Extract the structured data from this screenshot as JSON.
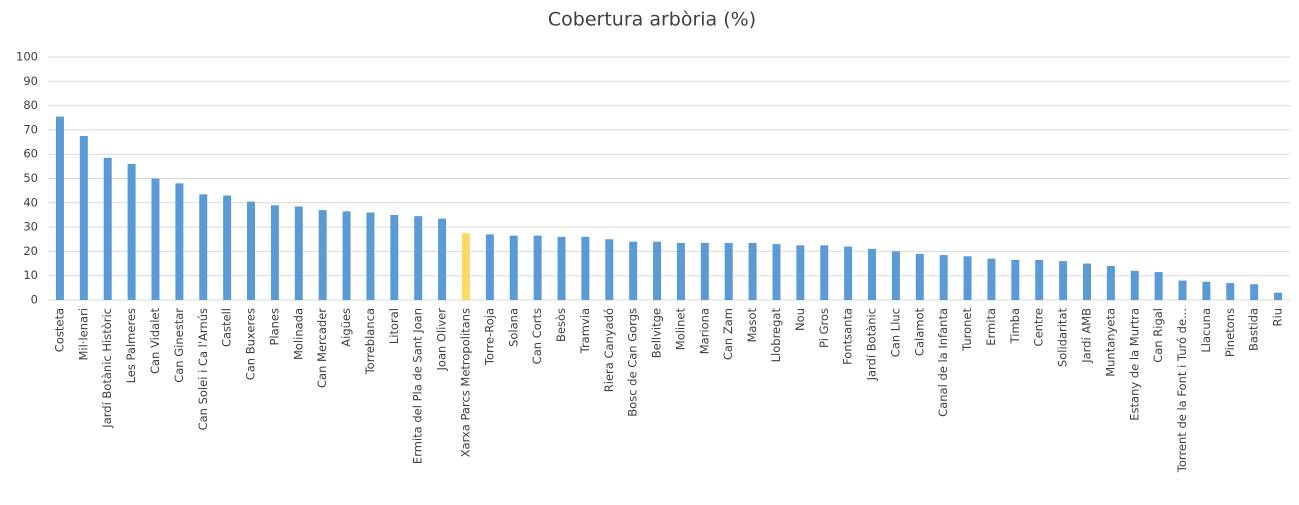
{
  "chart_data": {
    "type": "bar",
    "title": "Cobertura arbòria (%)",
    "categories": [
      "Costeta",
      "Mil·lenari",
      "Jardí Botànic Històric",
      "Les Palmeres",
      "Can Vidalet",
      "Can Ginestar",
      "Can Solei i Ca l'Arnús",
      "Castell",
      "Can Buxeres",
      "Planes",
      "Molinada",
      "Can Mercader",
      "Aigües",
      "Torreblanca",
      "Litoral",
      "Ermita del Pla de Sant Joan",
      "Joan Oliver",
      "Xarxa Parcs Metropolitans",
      "Torre-Roja",
      "Solana",
      "Can Corts",
      "Besòs",
      "Tramvia",
      "Riera Canyadó",
      "Bosc de Can Gorgs",
      "Bellvitge",
      "Molinet",
      "Mariona",
      "Can Zam",
      "Masot",
      "Llobregat",
      "Nou",
      "Pi Gros",
      "Fontsanta",
      "Jardí Botànic",
      "Can Lluc",
      "Calamot",
      "Canal de la Infanta",
      "Turonet",
      "Ermita",
      "Timba",
      "Centre",
      "Solidaritat",
      "Jardí AMB",
      "Muntanyeta",
      "Estany de la Murtra",
      "Can Rigal",
      "Torrent de la Font i Turó de...",
      "Llacuna",
      "Pinetons",
      "Bastida",
      "Riu"
    ],
    "values": [
      75.5,
      67.5,
      58.5,
      56,
      50,
      48,
      43.5,
      43,
      40.5,
      39,
      38.5,
      37,
      36.5,
      36,
      35,
      34.5,
      33.5,
      27.5,
      27,
      26.5,
      26.5,
      26,
      26,
      25,
      24,
      24,
      23.5,
      23.5,
      23.5,
      23.5,
      23,
      22.5,
      22.5,
      22,
      21,
      20,
      19,
      18.5,
      18,
      17,
      16.5,
      16.5,
      16,
      15,
      14,
      12,
      11.5,
      8,
      7.5,
      7,
      6.5,
      3
    ],
    "colors": [
      "#5b9bd5",
      "#5b9bd5",
      "#5b9bd5",
      "#5b9bd5",
      "#5b9bd5",
      "#5b9bd5",
      "#5b9bd5",
      "#5b9bd5",
      "#5b9bd5",
      "#5b9bd5",
      "#5b9bd5",
      "#5b9bd5",
      "#5b9bd5",
      "#5b9bd5",
      "#5b9bd5",
      "#5b9bd5",
      "#5b9bd5",
      "#ffd966",
      "#5b9bd5",
      "#5b9bd5",
      "#5b9bd5",
      "#5b9bd5",
      "#5b9bd5",
      "#5b9bd5",
      "#5b9bd5",
      "#5b9bd5",
      "#5b9bd5",
      "#5b9bd5",
      "#5b9bd5",
      "#5b9bd5",
      "#5b9bd5",
      "#5b9bd5",
      "#5b9bd5",
      "#5b9bd5",
      "#5b9bd5",
      "#5b9bd5",
      "#5b9bd5",
      "#5b9bd5",
      "#5b9bd5",
      "#5b9bd5",
      "#5b9bd5",
      "#5b9bd5",
      "#5b9bd5",
      "#5b9bd5",
      "#5b9bd5",
      "#5b9bd5",
      "#5b9bd5",
      "#5b9bd5",
      "#5b9bd5",
      "#5b9bd5",
      "#5b9bd5",
      "#5b9bd5"
    ],
    "ylim": [
      0,
      100
    ],
    "yticks": [
      0,
      10,
      20,
      30,
      40,
      50,
      60,
      70,
      80,
      90,
      100
    ],
    "grid": true
  }
}
